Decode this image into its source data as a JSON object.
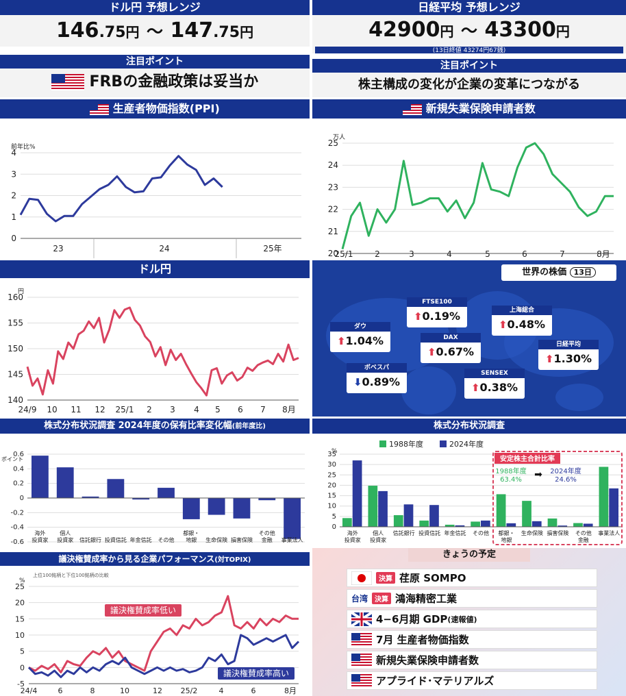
{
  "colors": {
    "navy": "#16338f",
    "green": "#2fb25e",
    "red": "#d9435f",
    "blue": "#2d3a9c",
    "up": "#e03a4e",
    "down": "#1f3fa8"
  },
  "usd_range": {
    "title": "ドル円 予想レンジ",
    "low_int": "146",
    "low_dec": ".75",
    "high_int": "147",
    "high_dec": ".75",
    "unit": "円",
    "sep": "〜"
  },
  "nikkei_range": {
    "title": "日経平均 予想レンジ",
    "low": "42900",
    "high": "43300",
    "unit": "円",
    "sep": "〜",
    "note": "(13日終値 43274円67銭)"
  },
  "focus_left": {
    "title": "注目ポイント",
    "text": "FRBの金融政策は妥当か",
    "flag": "us-flag-icon"
  },
  "focus_right": {
    "title": "注目ポイント",
    "text": "株主構成の変化が企業の変革につながる"
  },
  "chart_data": [
    {
      "id": "ppi",
      "type": "line",
      "title": "生産者物価指数(PPI)",
      "ylabel": "前年比%",
      "ylim": [
        0,
        4
      ],
      "yticks": [
        "0",
        "1",
        "2",
        "3",
        "4"
      ],
      "xticklabels": [
        "23",
        "24",
        "25年"
      ],
      "x": [
        0,
        1,
        2,
        3,
        4,
        5,
        6,
        7,
        8,
        9,
        10,
        11,
        12,
        13,
        14,
        15,
        16,
        17,
        18,
        19,
        20,
        21,
        22,
        23,
        24,
        25,
        26,
        27,
        28,
        29,
        30
      ],
      "values": [
        1.1,
        1.85,
        1.8,
        1.15,
        0.8,
        1.05,
        1.05,
        1.6,
        1.95,
        2.3,
        2.5,
        2.9,
        2.4,
        2.15,
        2.2,
        2.8,
        2.85,
        3.4,
        3.85,
        3.45,
        3.2,
        2.5,
        2.8,
        2.4,
        null,
        null,
        null,
        null,
        null,
        null,
        null
      ],
      "color": "#2d3a9c"
    },
    {
      "id": "claims",
      "type": "line",
      "title": "新規失業保険申請者数",
      "ylabel": "万人",
      "ylim": [
        20,
        25
      ],
      "yticks": [
        "20",
        "21",
        "22",
        "23",
        "24",
        "25"
      ],
      "xticklabels": [
        "25/1",
        "2",
        "3",
        "4",
        "5",
        "6",
        "7",
        "8月"
      ],
      "values": [
        20.2,
        21.7,
        22.3,
        20.8,
        22.0,
        21.4,
        22.0,
        24.2,
        22.2,
        22.3,
        22.5,
        22.5,
        21.9,
        22.4,
        21.6,
        22.3,
        24.1,
        22.9,
        22.8,
        22.6,
        23.9,
        24.8,
        25.0,
        24.5,
        23.6,
        23.2,
        22.8,
        22.1,
        21.7,
        21.9,
        22.6,
        22.6
      ],
      "color": "#2fb25e"
    },
    {
      "id": "usdjpy",
      "type": "line",
      "title": "ドル円",
      "ylabel": "円",
      "ylim": [
        140,
        160
      ],
      "yticks": [
        "140",
        "145",
        "150",
        "155",
        "160"
      ],
      "xticklabels": [
        "24/9",
        "10",
        "11",
        "12",
        "25/1",
        "2",
        "3",
        "4",
        "5",
        "6",
        "7",
        "8月"
      ],
      "values": [
        146.5,
        142.8,
        144.2,
        141.1,
        145.8,
        143.2,
        149.5,
        148.0,
        151.2,
        150.0,
        152.8,
        153.5,
        155.3,
        154.0,
        156.0,
        151.2,
        153.7,
        157.5,
        156.0,
        157.6,
        158.0,
        155.6,
        154.5,
        152.4,
        151.3,
        148.5,
        150.3,
        146.8,
        149.8,
        147.8,
        149.0,
        147.0,
        145.2,
        143.5,
        142.3,
        140.9,
        145.8,
        146.2,
        143.2,
        144.8,
        145.4,
        143.8,
        144.5,
        146.3,
        145.7,
        146.8,
        147.3,
        147.7,
        147.0,
        149.0,
        147.5,
        150.8,
        147.8,
        148.2
      ],
      "color": "#d9435f"
    },
    {
      "id": "ownership_change",
      "type": "bar",
      "title": "株式分布状況調査 2024年度の保有比率変化幅",
      "subtitle": "(前年度比)",
      "ylabel": "ポイント",
      "ylim": [
        -0.6,
        0.6
      ],
      "yticks": [
        "-0.6",
        "-0.4",
        "-0.2",
        "0",
        "0.2",
        "0.4",
        "0.6"
      ],
      "categories": [
        "海外\n投資家",
        "個人\n投資家",
        "信託銀行",
        "投資信託",
        "年金信託",
        "その他",
        "都銀・\n地銀",
        "生命保険",
        "損害保険",
        "その他\n金融",
        "事業法人"
      ],
      "values": [
        0.58,
        0.42,
        0.02,
        0.26,
        -0.02,
        0.14,
        -0.29,
        -0.23,
        -0.28,
        -0.03,
        -0.56
      ],
      "color": "#2d3a9c"
    },
    {
      "id": "ownership",
      "type": "bar",
      "title": "株式分布状況調査",
      "ylabel": "%",
      "ylim": [
        0,
        35
      ],
      "yticks": [
        "0",
        "5",
        "10",
        "15",
        "20",
        "25",
        "30",
        "35"
      ],
      "categories": [
        "海外\n投資家",
        "個人\n投資家",
        "信託銀行",
        "投資信託",
        "年金信託",
        "その他",
        "都銀・\n地銀",
        "生命保険",
        "損害保険",
        "その他\n金融",
        "事業法人"
      ],
      "series": [
        {
          "name": "1988年度",
          "values": [
            4.2,
            19.8,
            5.6,
            3.0,
            1.0,
            2.5,
            15.7,
            12.5,
            4.0,
            1.8,
            28.9
          ],
          "color": "#2fb25e"
        },
        {
          "name": "2024年度",
          "values": [
            32.0,
            17.2,
            10.8,
            10.5,
            0.7,
            3.0,
            1.7,
            2.7,
            0.6,
            1.5,
            18.5
          ],
          "color": "#2d3a9c"
        }
      ],
      "callout": {
        "title": "安定株主合計比率",
        "from_label": "1988年度",
        "from_value": "63.4%",
        "to_label": "2024年度",
        "to_value": "24.6%"
      }
    },
    {
      "id": "voting",
      "type": "line",
      "title": "議決権賛成率から見る企業パフォーマンス",
      "subtitle": "(対TOPIX)",
      "note": "上位100銘柄と下位100銘柄の比較",
      "ylabel": "%",
      "ylim": [
        -5,
        25
      ],
      "yticks": [
        "-5",
        "0",
        "5",
        "10",
        "15",
        "20",
        "25"
      ],
      "xticklabels": [
        "24/4",
        "6",
        "8",
        "10",
        "12",
        "25/2",
        "4",
        "6",
        "8月"
      ],
      "series": [
        {
          "name": "議決権賛成率低い",
          "color": "#d9435f",
          "values": [
            0,
            -1,
            0.5,
            -0.5,
            1,
            -1.5,
            2,
            1,
            0.5,
            3,
            5,
            4,
            6,
            3,
            5,
            2,
            1,
            0,
            -1,
            5,
            8,
            11,
            12,
            10,
            13,
            12,
            15,
            13,
            14,
            16,
            17,
            22,
            13,
            12,
            14,
            12,
            15,
            13,
            15,
            14,
            16,
            15,
            15
          ]
        },
        {
          "name": "議決権賛成率高い",
          "color": "#2d3a9c",
          "values": [
            0,
            -2,
            -1.5,
            -2.5,
            -1,
            -3,
            -1,
            -2,
            0,
            -1.5,
            0,
            -1,
            1,
            2,
            1,
            3,
            0,
            -1,
            -2,
            -1,
            0,
            -1,
            0,
            -1,
            -0.5,
            -1.5,
            -1,
            0,
            3,
            2,
            4,
            1,
            2,
            10,
            9,
            7,
            8,
            9,
            8,
            9,
            10,
            6,
            8
          ]
        }
      ]
    }
  ],
  "world": {
    "title": "世界の株価",
    "date": "13日",
    "items": [
      {
        "name": "ダウ",
        "value": "1.04%",
        "dir": "up",
        "flag": "us"
      },
      {
        "name": "FTSE100",
        "value": "0.19%",
        "dir": "up",
        "flag": "uk"
      },
      {
        "name": "上海総合",
        "value": "0.48%",
        "dir": "up",
        "flag": "cn"
      },
      {
        "name": "DAX",
        "value": "0.67%",
        "dir": "up",
        "flag": "de"
      },
      {
        "name": "日経平均",
        "value": "1.30%",
        "dir": "up",
        "flag": "jp"
      },
      {
        "name": "ボベスパ",
        "value": "0.89%",
        "dir": "down",
        "flag": "br"
      },
      {
        "name": "SENSEX",
        "value": "0.38%",
        "dir": "up",
        "flag": "in"
      }
    ]
  },
  "schedule": {
    "title": "きょうの予定",
    "badge": "決算",
    "tw_label": "台湾",
    "items": [
      {
        "flag": "jp",
        "badge": true,
        "text": "荏原 SOMPO"
      },
      {
        "flag": "tw",
        "badge": true,
        "text": "鴻海精密工業"
      },
      {
        "flag": "uk",
        "badge": false,
        "text": "4−6月期 GDP",
        "sub": "(速報値)"
      },
      {
        "flag": "us",
        "badge": false,
        "text": "7月 生産者物価指数"
      },
      {
        "flag": "us",
        "badge": false,
        "text": "新規失業保険申請者数"
      },
      {
        "flag": "us",
        "badge": false,
        "text": "アプライド･マテリアルズ"
      }
    ]
  }
}
